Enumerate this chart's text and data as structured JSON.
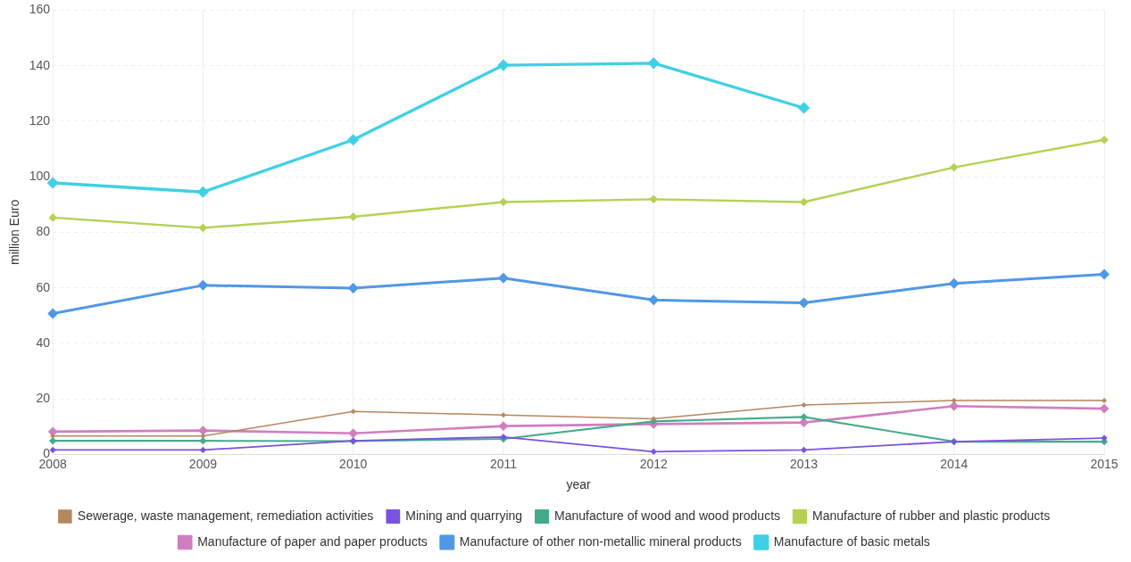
{
  "chart_data": {
    "type": "line",
    "xlabel": "year",
    "ylabel": "million Euro",
    "categories": [
      "2008",
      "2009",
      "2010",
      "2011",
      "2012",
      "2013",
      "2014",
      "2015"
    ],
    "series": [
      {
        "name": "Sewerage, waste management, remediation activities",
        "color": "#b5875f",
        "values": [
          6.6,
          6.6,
          15.5,
          14.2,
          12.8,
          17.8,
          19.4,
          19.4
        ]
      },
      {
        "name": "Mining and quarrying",
        "color": "#7b52dd",
        "values": [
          1.6,
          1.6,
          4.9,
          6.3,
          1.0,
          1.6,
          4.6,
          5.9
        ]
      },
      {
        "name": "Manufacture of wood and wood products",
        "color": "#44ab8b",
        "values": [
          4.9,
          4.9,
          4.8,
          5.6,
          11.9,
          13.5,
          4.6,
          4.6
        ]
      },
      {
        "name": "Manufacture of rubber and plastic products",
        "color": "#b5d154",
        "values": [
          85.3,
          81.6,
          85.6,
          90.9,
          91.9,
          90.9,
          103.4,
          113.3
        ]
      },
      {
        "name": "Manufacture of paper and paper products",
        "color": "#d17ebf",
        "values": [
          8.2,
          8.6,
          7.6,
          10.2,
          10.9,
          11.5,
          17.4,
          16.5
        ]
      },
      {
        "name": "Manufacture of other non-metallic mineral products",
        "color": "#4f98e6",
        "values": [
          50.7,
          60.9,
          59.9,
          63.5,
          55.6,
          54.6,
          61.6,
          64.9
        ]
      },
      {
        "name": "Manufacture of basic metals",
        "color": "#3fd0e6",
        "values": [
          97.8,
          94.5,
          113.3,
          140.2,
          140.9,
          124.8,
          null,
          null
        ]
      }
    ],
    "ylim": [
      0,
      160
    ],
    "yticks": [
      0,
      20,
      40,
      60,
      80,
      100,
      120,
      140,
      160
    ],
    "grid": true,
    "legend": "bottom",
    "marker": "diamond",
    "line_style": "solid"
  }
}
